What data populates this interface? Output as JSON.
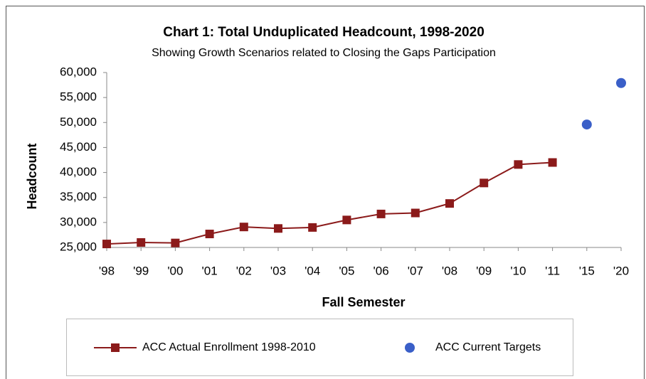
{
  "chart_data": {
    "type": "line",
    "title": "Chart 1: Total Unduplicated Headcount, 1998-2020",
    "subtitle": "Showing Growth Scenarios related to Closing the Gaps Participation",
    "x_label": "Fall Semester",
    "y_label": "Headcount",
    "categories": [
      "'98",
      "'99",
      "'00",
      "'01",
      "'02",
      "'03",
      "'04",
      "'05",
      "'06",
      "'07",
      "'08",
      "'09",
      "'10",
      "'11",
      "'15",
      "'20"
    ],
    "series": [
      {
        "name": "ACC Actual Enrollment 1998-2010",
        "color": "#8b1a1a",
        "marker": "square",
        "line": true,
        "values": [
          25700,
          26000,
          25900,
          27700,
          29100,
          28800,
          29000,
          30500,
          31700,
          31900,
          33800,
          37900,
          41600,
          42000,
          null,
          null
        ]
      },
      {
        "name": "ACC Current Targets",
        "color": "#3a5fc8",
        "marker": "circle",
        "line": false,
        "values": [
          null,
          null,
          null,
          null,
          null,
          null,
          null,
          null,
          null,
          null,
          null,
          null,
          null,
          null,
          49600,
          57900
        ]
      }
    ],
    "ylim": [
      25000,
      60000
    ],
    "yticks": [
      {
        "value": 25000,
        "label": "25,000"
      },
      {
        "value": 30000,
        "label": "30,000"
      },
      {
        "value": 35000,
        "label": "35,000"
      },
      {
        "value": 40000,
        "label": "40,000"
      },
      {
        "value": 45000,
        "label": "45,000"
      },
      {
        "value": 50000,
        "label": "50,000"
      },
      {
        "value": 55000,
        "label": "55,000"
      },
      {
        "value": 60000,
        "label": "60,000"
      }
    ],
    "grid": false,
    "legend": "bottom"
  }
}
